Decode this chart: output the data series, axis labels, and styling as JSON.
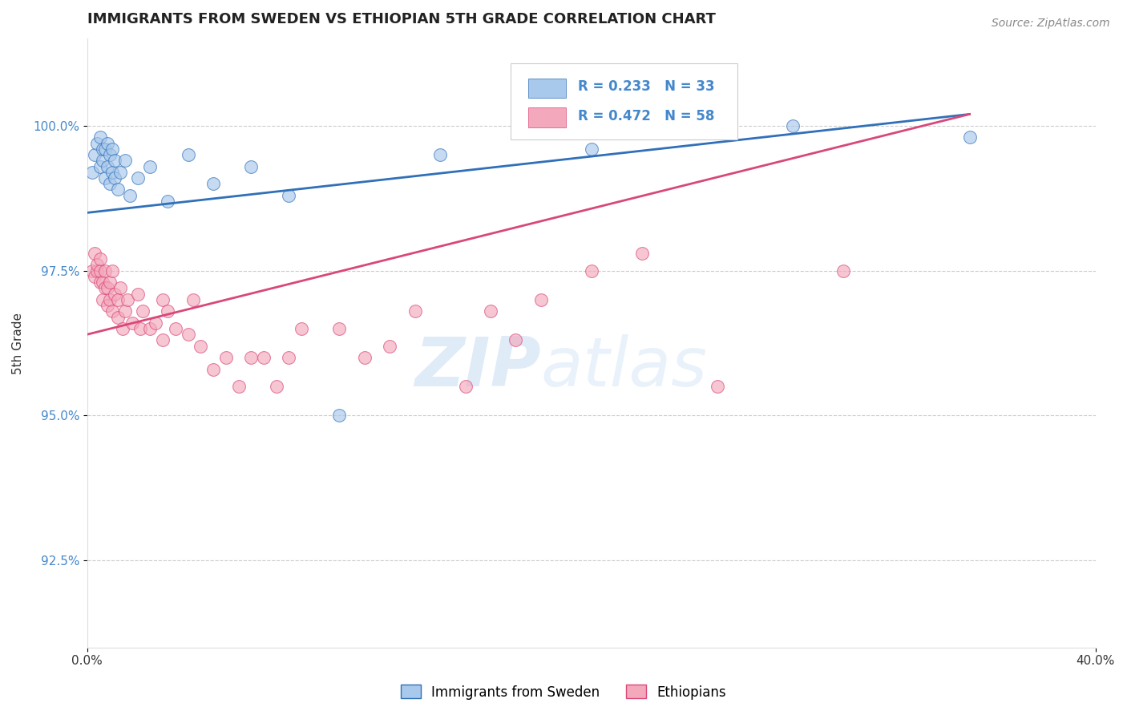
{
  "title": "IMMIGRANTS FROM SWEDEN VS ETHIOPIAN 5TH GRADE CORRELATION CHART",
  "source_text": "Source: ZipAtlas.com",
  "ylabel": "5th Grade",
  "xlim": [
    0.0,
    40.0
  ],
  "ylim": [
    91.0,
    101.5
  ],
  "yticks": [
    92.5,
    95.0,
    97.5,
    100.0
  ],
  "xticks": [
    0.0,
    40.0
  ],
  "xticklabels": [
    "0.0%",
    "40.0%"
  ],
  "yticklabels": [
    "92.5%",
    "95.0%",
    "97.5%",
    "100.0%"
  ],
  "sweden_color": "#A8C8EC",
  "ethiopia_color": "#F4A8BC",
  "sweden_line_color": "#3070B8",
  "ethiopia_line_color": "#D84878",
  "legend_text_color": "#4488CC",
  "R_sweden": 0.233,
  "N_sweden": 33,
  "R_ethiopia": 0.472,
  "N_ethiopia": 58,
  "sweden_x": [
    0.2,
    0.3,
    0.4,
    0.5,
    0.5,
    0.6,
    0.6,
    0.7,
    0.7,
    0.8,
    0.8,
    0.9,
    0.9,
    1.0,
    1.0,
    1.1,
    1.1,
    1.2,
    1.3,
    1.5,
    1.7,
    2.0,
    2.5,
    3.2,
    4.0,
    5.0,
    6.5,
    8.0,
    10.0,
    14.0,
    20.0,
    28.0,
    35.0
  ],
  "sweden_y": [
    99.2,
    99.5,
    99.7,
    99.3,
    99.8,
    99.4,
    99.6,
    99.1,
    99.6,
    99.3,
    99.7,
    99.0,
    99.5,
    99.2,
    99.6,
    99.1,
    99.4,
    98.9,
    99.2,
    99.4,
    98.8,
    99.1,
    99.3,
    98.7,
    99.5,
    99.0,
    99.3,
    98.8,
    95.0,
    99.5,
    99.6,
    100.0,
    99.8
  ],
  "ethiopia_x": [
    0.2,
    0.3,
    0.3,
    0.4,
    0.4,
    0.5,
    0.5,
    0.5,
    0.6,
    0.6,
    0.7,
    0.7,
    0.8,
    0.8,
    0.9,
    0.9,
    1.0,
    1.0,
    1.1,
    1.2,
    1.2,
    1.3,
    1.4,
    1.5,
    1.6,
    1.8,
    2.0,
    2.1,
    2.2,
    2.5,
    2.7,
    3.0,
    3.0,
    3.2,
    3.5,
    4.0,
    4.2,
    4.5,
    5.0,
    5.5,
    6.0,
    6.5,
    7.0,
    7.5,
    8.0,
    8.5,
    10.0,
    11.0,
    12.0,
    13.0,
    15.0,
    16.0,
    17.0,
    18.0,
    20.0,
    22.0,
    25.0,
    30.0
  ],
  "ethiopia_y": [
    97.5,
    97.4,
    97.8,
    97.5,
    97.6,
    97.3,
    97.5,
    97.7,
    97.0,
    97.3,
    97.2,
    97.5,
    96.9,
    97.2,
    97.0,
    97.3,
    97.5,
    96.8,
    97.1,
    96.7,
    97.0,
    97.2,
    96.5,
    96.8,
    97.0,
    96.6,
    97.1,
    96.5,
    96.8,
    96.5,
    96.6,
    97.0,
    96.3,
    96.8,
    96.5,
    96.4,
    97.0,
    96.2,
    95.8,
    96.0,
    95.5,
    96.0,
    96.0,
    95.5,
    96.0,
    96.5,
    96.5,
    96.0,
    96.2,
    96.8,
    95.5,
    96.8,
    96.3,
    97.0,
    97.5,
    97.8,
    95.5,
    97.5
  ],
  "watermark_zip": "ZIP",
  "watermark_atlas": "atlas",
  "background_color": "#FFFFFF",
  "grid_color": "#CCCCCC",
  "title_fontsize": 13,
  "tick_fontsize": 11,
  "ylabel_fontsize": 11
}
